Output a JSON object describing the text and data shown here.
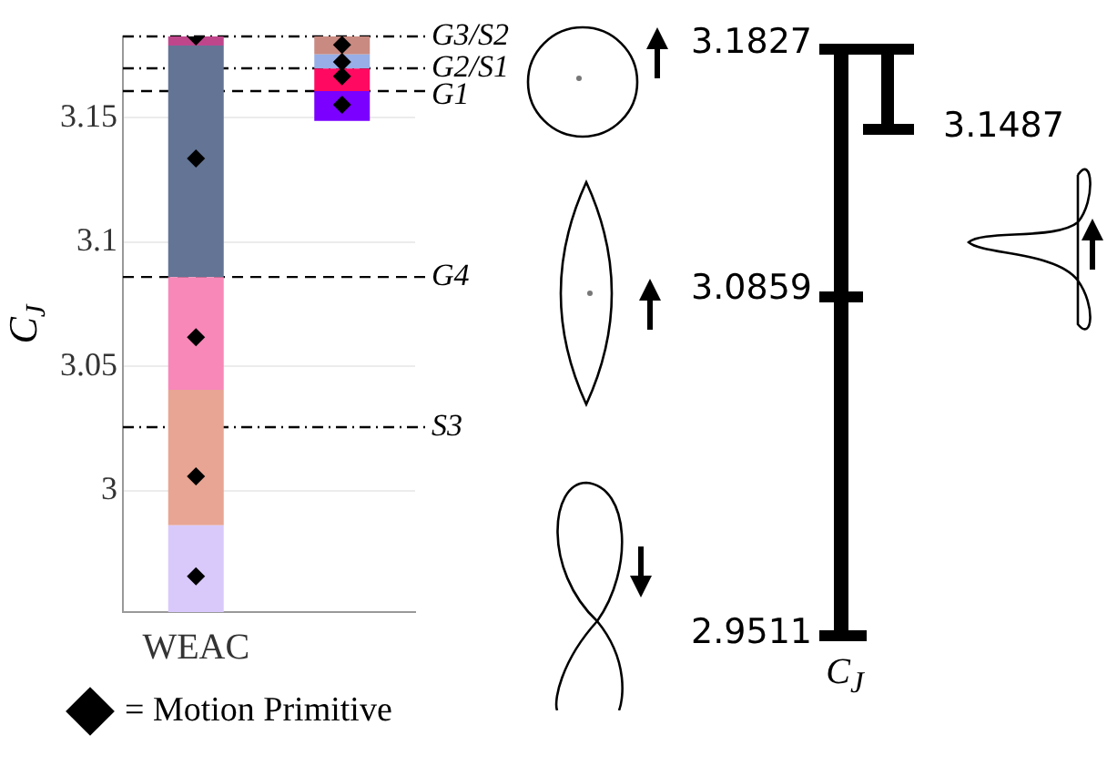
{
  "chart_data": [
    {
      "type": "bar",
      "categories": [
        "WEAC",
        null
      ],
      "ylabel": "C$_{J}$",
      "ylim": [
        2.9511,
        3.1827
      ],
      "yticks": [
        3,
        3.05,
        3.1,
        3.15
      ],
      "grid": "y",
      "legend": "bottom left",
      "series": [
        {
          "color": "#d9c9fb",
          "base": [
            2.9511,
            null
          ],
          "values": [
            0.0349,
            null
          ]
        },
        {
          "color": "#e8a593",
          "base": [
            2.986,
            null
          ],
          "values": [
            0.0545,
            null
          ]
        },
        {
          "color": "#f888b8",
          "base": [
            3.0405,
            null
          ],
          "values": [
            0.0454,
            null
          ]
        },
        {
          "color": "#637494",
          "base": [
            3.0859,
            null
          ],
          "values": [
            0.0931,
            null
          ]
        },
        {
          "color": "#c0468c",
          "base": [
            3.179,
            null
          ],
          "values": [
            0.0037,
            null
          ]
        },
        {
          "color": "#7b00ff",
          "base": [
            null,
            3.1487
          ],
          "values": [
            null,
            0.012
          ]
        },
        {
          "color": "#ff0a60",
          "base": [
            null,
            3.1607
          ],
          "values": [
            null,
            0.0091
          ]
        },
        {
          "color": "#97aee6",
          "base": [
            null,
            3.1698
          ],
          "values": [
            null,
            0.0057
          ]
        },
        {
          "color": "#c98a82",
          "base": [
            null,
            3.1755
          ],
          "values": [
            null,
            0.0072
          ]
        },
        {
          "type": "scatter",
          "name": "= Motion Primitive",
          "color": "#000000",
          "marker": "diamond",
          "x": [
            "WEAC",
            "WEAC",
            "WEAC",
            "WEAC",
            "WEAC",
            null,
            null,
            null,
            null
          ],
          "values": [
            3.1827,
            3.1336,
            3.0617,
            3.0057,
            2.9655,
            3.1793,
            3.1724,
            3.1667,
            3.1552
          ]
        }
      ],
      "ref_lines": [
        {
          "axis": "y",
          "value": 3.1827,
          "label": "G3/S2",
          "line_style": "dotted"
        },
        {
          "axis": "y",
          "value": 3.1699,
          "label": "G2/S1",
          "line_style": "dotted"
        },
        {
          "axis": "y",
          "value": 3.1607,
          "label": "G1",
          "line_style": "dashed"
        },
        {
          "axis": "y",
          "value": 3.0859,
          "label": "G4",
          "line_style": "dashed"
        },
        {
          "axis": "y",
          "value": 3.0255,
          "label": "S3",
          "line_style": "dotted"
        }
      ]
    },
    {
      "type": "other",
      "xlabel": "C$_{J}$",
      "annotations": [
        "3.1827",
        "3.1487",
        "3.0859",
        "2.9511"
      ]
    }
  ]
}
